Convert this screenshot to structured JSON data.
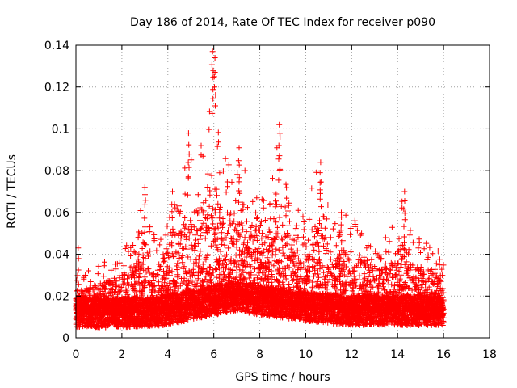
{
  "chart_data": {
    "type": "scatter",
    "title": "Day 186 of 2014, Rate Of TEC Index for receiver p090",
    "xlabel": "GPS time / hours",
    "ylabel": "ROTI / TECUs",
    "xlim": [
      0,
      18
    ],
    "ylim": [
      0,
      0.14
    ],
    "xticks": [
      "0",
      "2",
      "4",
      "6",
      "8",
      "10",
      "12",
      "14",
      "16",
      "18"
    ],
    "yticks": [
      "0",
      "0.02",
      "0.04",
      "0.06",
      "0.08",
      "0.1",
      "0.12",
      "0.14"
    ],
    "grid": true,
    "marker": "+",
    "color": "#ff0000",
    "series": [
      {
        "name": "ROTI",
        "x_range": [
          0,
          16
        ],
        "samples_per_hour": 120,
        "baseline": [
          [
            0,
            0.012
          ],
          [
            2,
            0.012
          ],
          [
            4,
            0.013
          ],
          [
            6,
            0.018
          ],
          [
            7,
            0.02
          ],
          [
            8,
            0.018
          ],
          [
            10,
            0.015
          ],
          [
            12,
            0.013
          ],
          [
            14,
            0.013
          ],
          [
            16,
            0.013
          ]
        ],
        "envelope": [
          [
            0,
            0.03
          ],
          [
            0.5,
            0.032
          ],
          [
            1.5,
            0.038
          ],
          [
            2.5,
            0.048
          ],
          [
            3,
            0.07
          ],
          [
            3.5,
            0.045
          ],
          [
            4.2,
            0.068
          ],
          [
            4.8,
            0.085
          ],
          [
            5.5,
            0.095
          ],
          [
            5.9,
            0.137
          ],
          [
            6.3,
            0.09
          ],
          [
            6.8,
            0.085
          ],
          [
            7.2,
            0.092
          ],
          [
            7.8,
            0.075
          ],
          [
            8.3,
            0.07
          ],
          [
            8.9,
            0.102
          ],
          [
            9.4,
            0.07
          ],
          [
            10,
            0.063
          ],
          [
            10.6,
            0.084
          ],
          [
            11.2,
            0.055
          ],
          [
            11.7,
            0.06
          ],
          [
            12.4,
            0.055
          ],
          [
            13,
            0.045
          ],
          [
            13.6,
            0.05
          ],
          [
            14.3,
            0.07
          ],
          [
            14.8,
            0.05
          ],
          [
            15.4,
            0.045
          ],
          [
            16,
            0.048
          ]
        ],
        "peaks": [
          {
            "x": 5.95,
            "y": 0.137
          },
          {
            "x": 6.05,
            "y": 0.134
          },
          {
            "x": 4.9,
            "y": 0.098
          },
          {
            "x": 8.85,
            "y": 0.102
          },
          {
            "x": 7.1,
            "y": 0.091
          },
          {
            "x": 10.65,
            "y": 0.084
          },
          {
            "x": 3.0,
            "y": 0.072
          },
          {
            "x": 14.3,
            "y": 0.07
          },
          {
            "x": 4.2,
            "y": 0.07
          },
          {
            "x": 11.55,
            "y": 0.06
          },
          {
            "x": 0.1,
            "y": 0.043
          }
        ]
      }
    ]
  }
}
